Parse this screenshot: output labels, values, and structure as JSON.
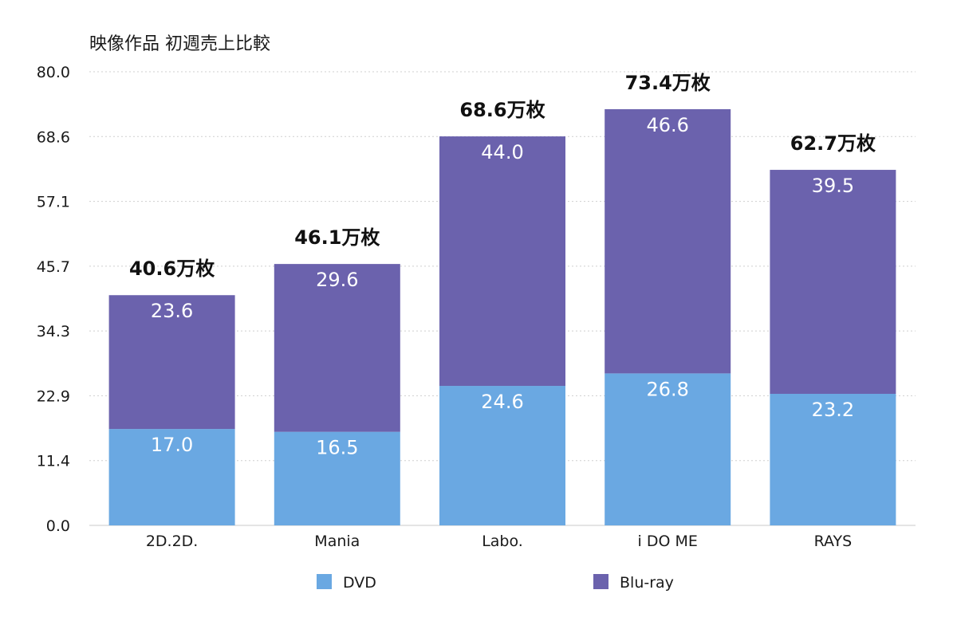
{
  "chart_data": {
    "type": "bar",
    "stacked": true,
    "title": "映像作品 初週売上比較",
    "categories": [
      "2D.2D.",
      "Mania",
      "Labo.",
      "i DO ME",
      "RAYS"
    ],
    "series": [
      {
        "name": "DVD",
        "color": "#6aa8e2",
        "values": [
          17.0,
          16.5,
          24.6,
          26.8,
          23.2
        ]
      },
      {
        "name": "Blu-ray",
        "color": "#6b62ad",
        "values": [
          23.6,
          29.6,
          44.0,
          46.6,
          39.5
        ]
      }
    ],
    "segment_labels": [
      [
        "17.0",
        "16.5",
        "24.6",
        "26.8",
        "23.2"
      ],
      [
        "23.6",
        "29.6",
        "44.0",
        "46.6",
        "39.5"
      ]
    ],
    "totals": [
      40.6,
      46.1,
      68.6,
      73.4,
      62.7
    ],
    "total_labels": [
      "40.6万枚",
      "46.1万枚",
      "68.6万枚",
      "73.4万枚",
      "62.7万枚"
    ],
    "yticks": [
      "0.0",
      "11.4",
      "22.9",
      "34.3",
      "45.7",
      "57.1",
      "68.6",
      "80.0"
    ],
    "ylim": [
      0,
      80
    ],
    "grid": true,
    "legend": "bottom"
  }
}
